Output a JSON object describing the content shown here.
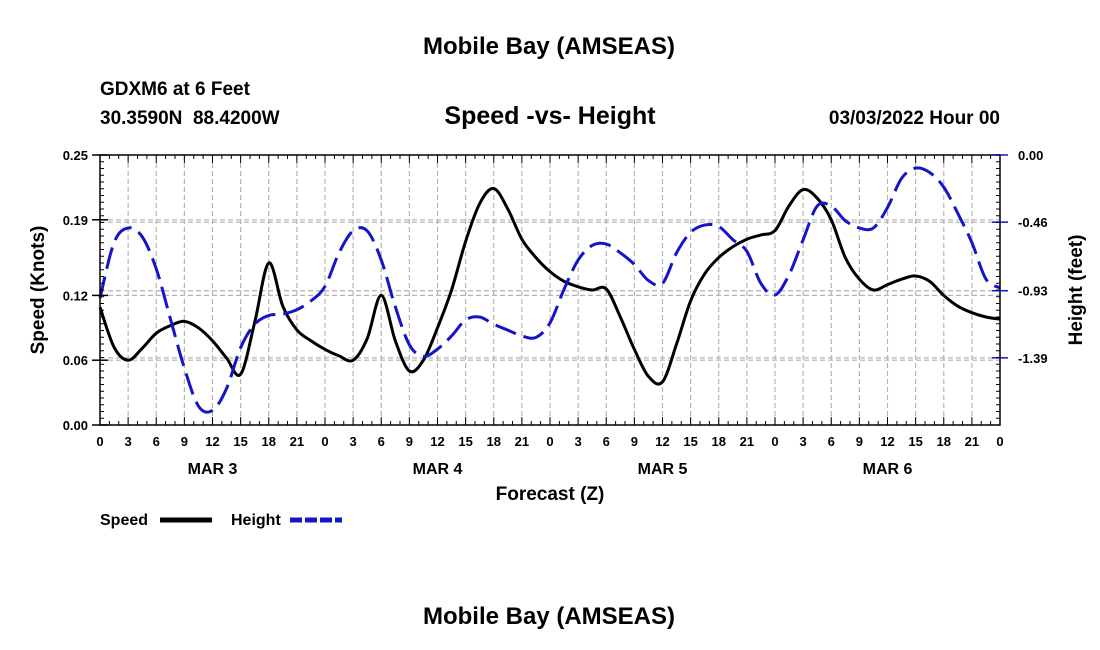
{
  "header": {
    "title": "Mobile Bay (AMSEAS)",
    "station": "GDXM6 at 6 Feet",
    "coords": "30.3590N  88.4200W",
    "subtitle": "Speed -vs- Height",
    "date": "03/03/2022 Hour 00",
    "footer_title": "Mobile Bay (AMSEAS)"
  },
  "colors": {
    "speed": "#000000",
    "height": "#1414c8",
    "grid": "#b4b4b4"
  },
  "chart_data": {
    "type": "line",
    "title": "Speed -vs- Height",
    "xlabel": "Forecast (Z)",
    "ylabel": "Speed (Knots)",
    "y2label": "Height (feet)",
    "xlim": [
      0,
      96
    ],
    "ylim": [
      0,
      0.25
    ],
    "y2lim": [
      -1.85,
      0.0
    ],
    "yticks": [
      "0.00",
      "0.06",
      "0.12",
      "0.19",
      "0.25"
    ],
    "y2ticks": [
      "0.00",
      "-0.46",
      "-0.93",
      "-1.39"
    ],
    "xtick_labels": [
      "0",
      "3",
      "6",
      "9",
      "12",
      "15",
      "18",
      "21",
      "0",
      "3",
      "6",
      "9",
      "12",
      "15",
      "18",
      "21",
      "0",
      "3",
      "6",
      "9",
      "12",
      "15",
      "18",
      "21",
      "0",
      "3",
      "6",
      "9",
      "12",
      "15",
      "18",
      "21",
      "0"
    ],
    "day_labels": [
      "MAR 3",
      "MAR 4",
      "MAR 5",
      "MAR 6"
    ],
    "series": [
      {
        "name": "Speed",
        "axis": "left",
        "style": "solid",
        "x": [
          0,
          1.5,
          3,
          4.5,
          6,
          7.5,
          9,
          10.5,
          12,
          13.5,
          15,
          16.5,
          18,
          19.5,
          21,
          22.5,
          24,
          25.5,
          27,
          28.5,
          30,
          31.5,
          33,
          34.5,
          36,
          37.5,
          39,
          40.5,
          42,
          43.5,
          45,
          46.5,
          48,
          49.5,
          51,
          52.5,
          54,
          55.5,
          57,
          58.5,
          60,
          61.5,
          63,
          64.5,
          66,
          67.5,
          69,
          70.5,
          72,
          73.5,
          75,
          76.5,
          78,
          79.5,
          81,
          82.5,
          84,
          85.5,
          87,
          88.5,
          90,
          91.5,
          93,
          94.5,
          96
        ],
        "y": [
          0.109,
          0.072,
          0.06,
          0.071,
          0.085,
          0.092,
          0.096,
          0.09,
          0.078,
          0.062,
          0.047,
          0.095,
          0.15,
          0.11,
          0.088,
          0.078,
          0.07,
          0.064,
          0.06,
          0.08,
          0.12,
          0.078,
          0.05,
          0.06,
          0.09,
          0.125,
          0.17,
          0.205,
          0.219,
          0.2,
          0.172,
          0.155,
          0.142,
          0.133,
          0.128,
          0.125,
          0.126,
          0.1,
          0.07,
          0.045,
          0.04,
          0.075,
          0.115,
          0.14,
          0.155,
          0.165,
          0.172,
          0.176,
          0.18,
          0.203,
          0.218,
          0.21,
          0.19,
          0.155,
          0.135,
          0.125,
          0.13,
          0.135,
          0.138,
          0.133,
          0.12,
          0.11,
          0.104,
          0.1,
          0.098
        ]
      },
      {
        "name": "Height",
        "axis": "right",
        "style": "dashed",
        "x": [
          0,
          1.5,
          3,
          4.5,
          6,
          7.5,
          9,
          10.5,
          12,
          13.5,
          15,
          16.5,
          18,
          19.5,
          21,
          22.5,
          24,
          25.5,
          27,
          28.5,
          30,
          31.5,
          33,
          34.5,
          36,
          37.5,
          39,
          40.5,
          42,
          43.5,
          45,
          46.5,
          48,
          49.5,
          51,
          52.5,
          54,
          55.5,
          57,
          58.5,
          60,
          61.5,
          63,
          64.5,
          66,
          67.5,
          69,
          70.5,
          72,
          73.5,
          75,
          76.5,
          78,
          79.5,
          81,
          82.5,
          84,
          85.5,
          87,
          88.5,
          90,
          91.5,
          93,
          94.5,
          96
        ],
        "y": [
          -0.98,
          -0.6,
          -0.5,
          -0.56,
          -0.78,
          -1.12,
          -1.46,
          -1.72,
          -1.75,
          -1.6,
          -1.32,
          -1.16,
          -1.1,
          -1.09,
          -1.06,
          -1.0,
          -0.9,
          -0.67,
          -0.52,
          -0.52,
          -0.72,
          -1.04,
          -1.3,
          -1.38,
          -1.33,
          -1.24,
          -1.13,
          -1.11,
          -1.16,
          -1.2,
          -1.24,
          -1.25,
          -1.15,
          -0.92,
          -0.72,
          -0.62,
          -0.61,
          -0.67,
          -0.75,
          -0.86,
          -0.88,
          -0.67,
          -0.53,
          -0.48,
          -0.49,
          -0.58,
          -0.66,
          -0.88,
          -0.96,
          -0.82,
          -0.58,
          -0.35,
          -0.35,
          -0.45,
          -0.5,
          -0.5,
          -0.36,
          -0.16,
          -0.09,
          -0.12,
          -0.22,
          -0.4,
          -0.6,
          -0.85,
          -0.91
        ]
      }
    ],
    "legend": {
      "position": "bottom-left",
      "entries": [
        "Speed",
        "Height"
      ]
    }
  }
}
